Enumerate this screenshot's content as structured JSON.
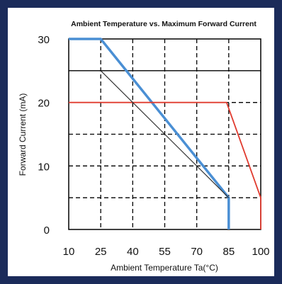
{
  "chart_data": {
    "type": "line",
    "title": "Ambient Temperature vs. Maximum Forward Current",
    "xlabel": "Ambient Temperature Ta(°C)",
    "ylabel": "Forward Current (mA)",
    "x_ticks": [
      "10",
      "25",
      "40",
      "55",
      "70",
      "85",
      "100"
    ],
    "y_ticks": [
      "30",
      "20",
      "10",
      "0"
    ],
    "xlim": [
      10,
      100
    ],
    "ylim": [
      0,
      30
    ],
    "grid": true,
    "legend": "none",
    "series": [
      {
        "color": "#4a8fd4",
        "x": [
          10,
          25,
          85,
          85
        ],
        "y": [
          30,
          30,
          5,
          0
        ]
      },
      {
        "color": "#e03a2e",
        "x": [
          10,
          84,
          100,
          100
        ],
        "y": [
          20,
          20,
          5,
          0
        ]
      },
      {
        "color": "#333333",
        "x": [
          25,
          85
        ],
        "y": [
          25,
          5
        ]
      }
    ]
  },
  "colors": {
    "frame": "#1b2b5a",
    "grid": "#000000"
  }
}
